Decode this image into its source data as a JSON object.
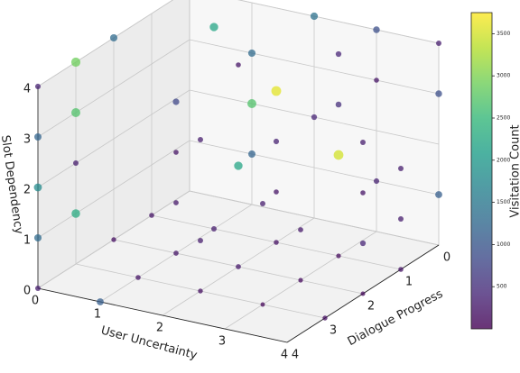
{
  "chart_data": {
    "type": "scatter3d",
    "xlabel": "User Uncertainty",
    "ylabel": "Dialogue Progress",
    "zlabel": "Slot Dependency",
    "colorbar_label": "Visitation Count",
    "xlim": [
      0,
      4
    ],
    "ylim": [
      0,
      4
    ],
    "zlim": [
      0,
      4
    ],
    "xticks": [
      0,
      1,
      2,
      3,
      4
    ],
    "yticks": [
      0,
      1,
      2,
      3,
      4
    ],
    "zticks": [
      0,
      1,
      2,
      3,
      4
    ],
    "clim": [
      0,
      3750
    ],
    "cticks": [
      500,
      1000,
      1500,
      2000,
      2500,
      3000,
      3500
    ],
    "colormap": "viridis",
    "grid": true,
    "x": [
      0,
      1,
      1,
      2,
      2,
      3,
      3,
      4,
      2,
      1,
      0,
      1,
      3,
      4,
      0,
      4,
      0,
      0,
      1,
      2,
      3,
      4,
      4,
      2,
      1,
      3,
      4,
      0,
      0,
      1,
      2,
      2,
      3,
      4,
      1,
      3,
      4,
      2,
      0,
      0,
      1,
      2,
      3,
      4,
      4,
      1,
      2,
      3,
      0,
      0,
      1,
      2,
      3,
      4,
      0,
      3,
      2
    ],
    "y": [
      4,
      4,
      3,
      3,
      2,
      2,
      1,
      1,
      1,
      2,
      2,
      1,
      3,
      2,
      1,
      3,
      4,
      3,
      2,
      1,
      0,
      1,
      2,
      3,
      0,
      2,
      0,
      4,
      3,
      2,
      1,
      2,
      1,
      1,
      0,
      3,
      2,
      0,
      4,
      3,
      2,
      1,
      1,
      0,
      2,
      0,
      3,
      0,
      4,
      2,
      1,
      0,
      0,
      0,
      3,
      1,
      2
    ],
    "z": [
      0,
      0,
      0,
      0,
      0,
      0,
      0,
      0,
      0,
      0,
      0,
      0,
      0,
      0,
      0,
      0,
      1,
      1,
      1,
      1,
      1,
      1,
      1,
      1,
      1,
      1,
      1,
      2,
      2,
      2,
      2,
      2,
      2,
      2,
      2,
      2,
      2,
      2,
      3,
      3,
      3,
      3,
      3,
      3,
      3,
      3,
      3,
      3,
      4,
      4,
      4,
      4,
      4,
      4,
      4,
      4,
      4
    ],
    "values": [
      300,
      1100,
      200,
      150,
      250,
      100,
      120,
      200,
      180,
      220,
      150,
      300,
      60,
      90,
      200,
      150,
      1300,
      2300,
      250,
      200,
      350,
      300,
      400,
      300,
      1200,
      250,
      1100,
      1800,
      300,
      200,
      350,
      2200,
      3500,
      300,
      2700,
      300,
      200,
      400,
      1200,
      2700,
      800,
      3600,
      500,
      900,
      300,
      1300,
      300,
      200,
      350,
      1300,
      2200,
      1400,
      900,
      300,
      2900,
      400,
      200
    ]
  }
}
